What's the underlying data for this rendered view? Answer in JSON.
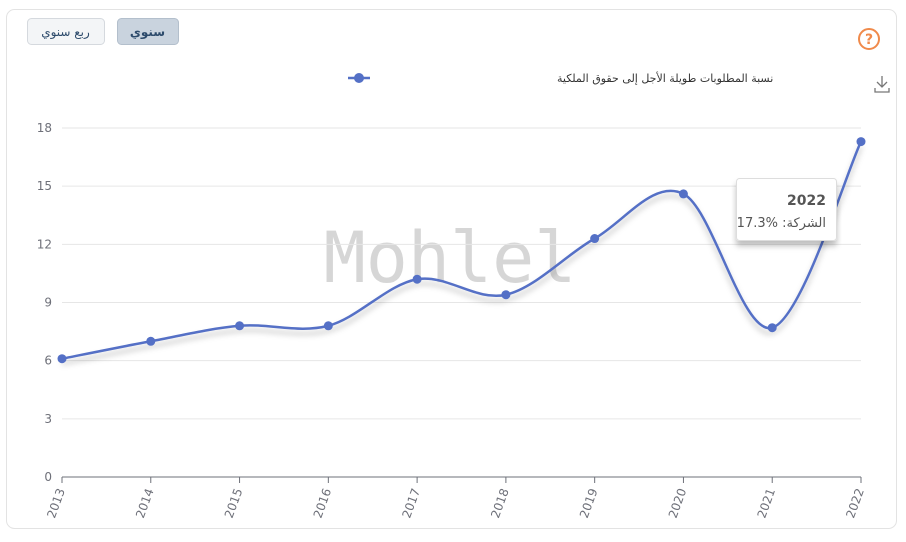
{
  "buttons": [
    {
      "label": "ربع سنوي",
      "active": false
    },
    {
      "label": "سنوي",
      "active": true
    }
  ],
  "chart_data": {
    "type": "line",
    "categories": [
      "2013",
      "2014",
      "2015",
      "2016",
      "2017",
      "2018",
      "2019",
      "2020",
      "2021",
      "2022"
    ],
    "series": [
      {
        "name": "نسبة المطلوبات طويلة الأجل إلى حقوق الملكية",
        "color": "#5470c6",
        "values": [
          6.1,
          7.0,
          7.8,
          7.8,
          10.2,
          9.4,
          12.3,
          14.6,
          7.7,
          17.3
        ]
      }
    ],
    "ylim": [
      0,
      18
    ],
    "yticks": [
      0,
      3,
      6,
      9,
      12,
      15,
      18
    ],
    "grid": true,
    "smooth": true,
    "legend": "top",
    "watermark": "Mohlel",
    "tooltip": {
      "title": "2022",
      "text": "الشركة: %17.3"
    }
  }
}
